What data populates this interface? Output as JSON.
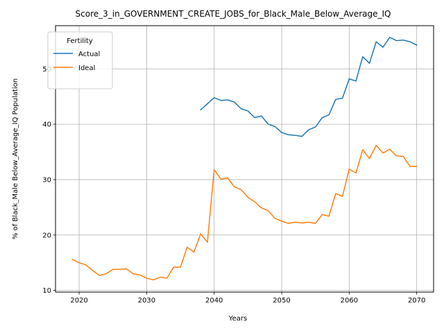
{
  "chart_data": {
    "type": "line",
    "title": "Score_3_in_GOVERNMENT_CREATE_JOBS_for_Black_Male_Below_Average_IQ",
    "xlabel": "Years",
    "ylabel": "% of Black_Male Below_Average_IQ Population",
    "xlim": [
      2016.5,
      2072.5
    ],
    "ylim": [
      9.7,
      57.8
    ],
    "xticks": [
      2020,
      2030,
      2040,
      2050,
      2060,
      2070
    ],
    "yticks": [
      10,
      20,
      30,
      40,
      50
    ],
    "grid": true,
    "legend": {
      "title": "Fertility",
      "placement": "top-left"
    },
    "series": [
      {
        "name": "Actual",
        "color": "#1f77b4",
        "x": [
          2038,
          2039,
          2040,
          2041,
          2042,
          2043,
          2044,
          2045,
          2046,
          2047,
          2048,
          2049,
          2050,
          2051,
          2052,
          2053,
          2054,
          2055,
          2056,
          2057,
          2058,
          2059,
          2060,
          2061,
          2062,
          2063,
          2064,
          2065,
          2066,
          2067,
          2068,
          2069,
          2070
        ],
        "values": [
          42.6,
          43.7,
          44.8,
          44.3,
          44.4,
          44.0,
          42.8,
          42.4,
          41.2,
          41.5,
          40.0,
          39.6,
          38.5,
          38.1,
          38.0,
          37.8,
          39.0,
          39.5,
          41.2,
          41.7,
          44.5,
          44.7,
          48.2,
          47.8,
          52.2,
          51.0,
          54.9,
          53.9,
          55.7,
          55.1,
          55.2,
          54.9,
          54.3
        ]
      },
      {
        "name": "Ideal",
        "color": "#ff7f0e",
        "x": [
          2019,
          2020,
          2021,
          2022,
          2023,
          2024,
          2025,
          2026,
          2027,
          2028,
          2029,
          2030,
          2031,
          2032,
          2033,
          2034,
          2035,
          2036,
          2037,
          2038,
          2039,
          2040,
          2041,
          2042,
          2043,
          2044,
          2045,
          2046,
          2047,
          2048,
          2049,
          2050,
          2051,
          2052,
          2053,
          2054,
          2055,
          2056,
          2057,
          2058,
          2059,
          2060,
          2061,
          2062,
          2063,
          2064,
          2065,
          2066,
          2067,
          2068,
          2069,
          2070
        ],
        "values": [
          15.6,
          15.0,
          14.6,
          13.6,
          12.7,
          13.0,
          13.8,
          13.8,
          13.9,
          13.0,
          12.8,
          12.2,
          11.9,
          12.4,
          12.2,
          14.2,
          14.2,
          17.8,
          16.9,
          20.2,
          18.7,
          31.8,
          30.1,
          30.3,
          28.7,
          28.2,
          26.8,
          26.0,
          24.9,
          24.4,
          23.0,
          22.5,
          22.1,
          22.3,
          22.2,
          22.3,
          22.1,
          23.7,
          23.4,
          27.5,
          27.0,
          31.9,
          31.2,
          35.4,
          33.8,
          36.2,
          34.8,
          35.5,
          34.3,
          34.2,
          32.4,
          32.4
        ]
      }
    ]
  }
}
